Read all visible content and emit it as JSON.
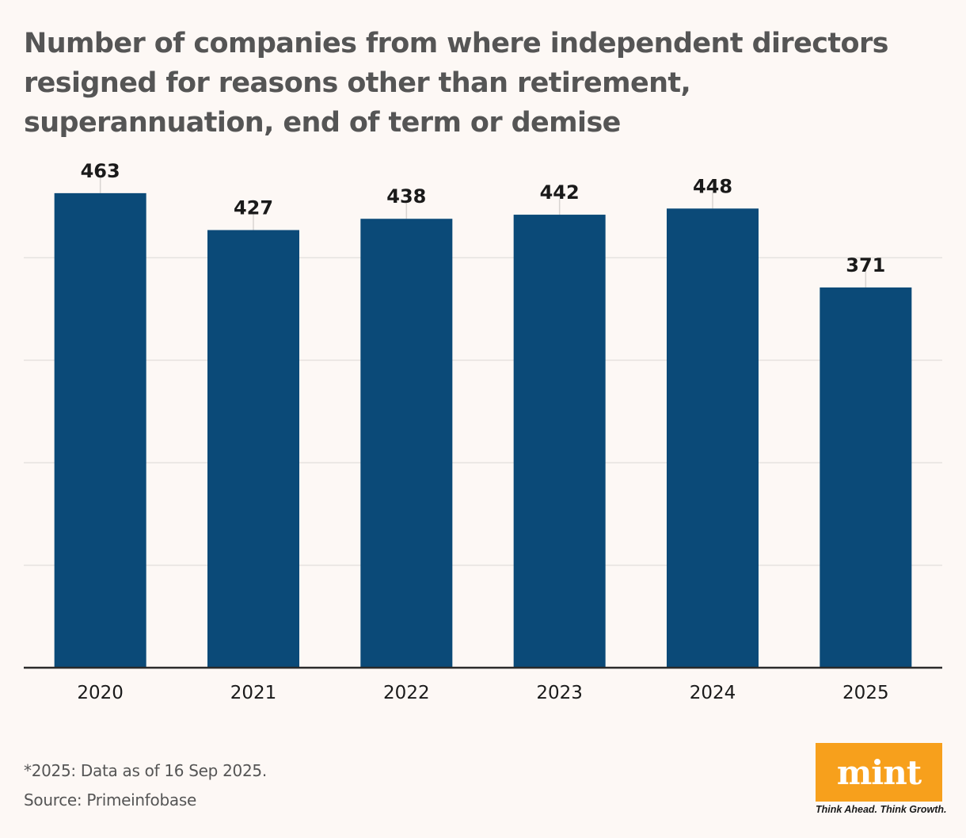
{
  "title": "Number of companies from where independent directors resigned for reasons other than retirement, superannuation, end of term or demise",
  "footnote": "*2025: Data as of 16 Sep 2025.",
  "source": "Source: Primeinfobase",
  "brand": {
    "logo_text": "mint",
    "tagline": "Think Ahead. Think Growth."
  },
  "colors": {
    "bar": "#0b4a78",
    "logo_bg": "#f7a01c",
    "background": "#fdf8f5"
  },
  "chart_data": {
    "type": "bar",
    "title": "Number of companies from where independent directors resigned for reasons other than retirement, superannuation, end of term or demise",
    "categories": [
      "2020",
      "2021",
      "2022",
      "2023",
      "2024",
      "2025"
    ],
    "values": [
      463,
      427,
      438,
      442,
      448,
      371
    ],
    "xlabel": "",
    "ylabel": "",
    "ylim": [
      0,
      500
    ],
    "grid": true,
    "gridlines_at": [
      100,
      200,
      300,
      400
    ],
    "legend": "none"
  }
}
